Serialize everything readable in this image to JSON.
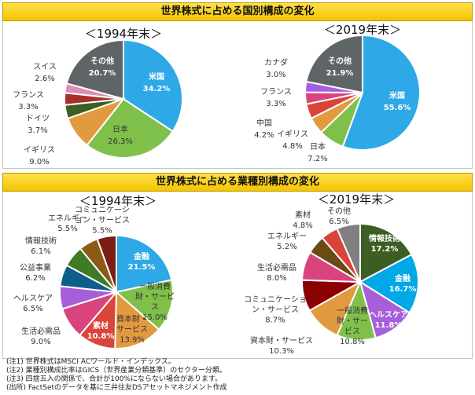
{
  "sections": [
    {
      "title": "世界株式に占める国別構成の変化"
    },
    {
      "title": "世界株式に占める業種別構成の変化"
    }
  ],
  "chart_data": [
    {
      "type": "pie",
      "title": "＜1994年末＞",
      "slices": [
        {
          "label": "米国",
          "value": 34.2,
          "pct": "34.2%",
          "color": "#2ea8e6"
        },
        {
          "label": "日本",
          "value": 26.3,
          "pct": "26.3%",
          "color": "#7fc04a"
        },
        {
          "label": "イギリス",
          "value": 9.0,
          "pct": "9.0%",
          "color": "#e29a3f"
        },
        {
          "label": "ドイツ",
          "value": 3.7,
          "pct": "3.7%",
          "color": "#3c5f23"
        },
        {
          "label": "フランス",
          "value": 3.3,
          "pct": "3.3%",
          "color": "#a8302a"
        },
        {
          "label": "スイス",
          "value": 2.6,
          "pct": "2.6%",
          "color": "#e08bb8"
        },
        {
          "label": "その他",
          "value": 20.7,
          "pct": "20.7%",
          "color": "#5f6566"
        }
      ]
    },
    {
      "type": "pie",
      "title": "＜2019年末＞",
      "slices": [
        {
          "label": "米国",
          "value": 55.6,
          "pct": "55.6%",
          "color": "#2ea8e6"
        },
        {
          "label": "日本",
          "value": 7.2,
          "pct": "7.2%",
          "color": "#7fc04a"
        },
        {
          "label": "イギリス",
          "value": 4.8,
          "pct": "4.8%",
          "color": "#e29a3f"
        },
        {
          "label": "中国",
          "value": 4.2,
          "pct": "4.2%",
          "color": "#d9453a"
        },
        {
          "label": "フランス",
          "value": 3.3,
          "pct": "3.3%",
          "color": "#d9447e"
        },
        {
          "label": "カナダ",
          "value": 3.0,
          "pct": "3.0%",
          "color": "#a35fe0"
        },
        {
          "label": "その他",
          "value": 21.9,
          "pct": "21.9%",
          "color": "#5f6566"
        }
      ]
    },
    {
      "type": "pie",
      "title": "＜1994年末＞",
      "slices": [
        {
          "label": "金融",
          "value": 21.5,
          "pct": "21.5%",
          "color": "#2ea8e6"
        },
        {
          "label": "一般消費財・サービス",
          "value": 15.0,
          "pct": "15.0%",
          "color": "#7fc04a"
        },
        {
          "label": "資本財・サービス",
          "value": 13.9,
          "pct": "13.9%",
          "color": "#e29a3f"
        },
        {
          "label": "素材",
          "value": 10.8,
          "pct": "10.8%",
          "color": "#d9453a"
        },
        {
          "label": "生活必需品",
          "value": 9.0,
          "pct": "9.0%",
          "color": "#d9447e"
        },
        {
          "label": "ヘルスケア",
          "value": 6.5,
          "pct": "6.5%",
          "color": "#a65fd9"
        },
        {
          "label": "公益事業",
          "value": 6.2,
          "pct": "6.2%",
          "color": "#0e5e8a"
        },
        {
          "label": "情報技術",
          "value": 6.1,
          "pct": "6.1%",
          "color": "#3f7a25"
        },
        {
          "label": "エネルギー",
          "value": 5.5,
          "pct": "5.5%",
          "color": "#8a5a16"
        },
        {
          "label": "コミュニケーション・サービス",
          "value": 5.5,
          "pct": "5.5%",
          "color": "#7a1e16"
        }
      ]
    },
    {
      "type": "pie",
      "title": "＜2019年末＞",
      "slices": [
        {
          "label": "情報技術",
          "value": 17.2,
          "pct": "17.2%",
          "color": "#3d5e23"
        },
        {
          "label": "金融",
          "value": 16.7,
          "pct": "16.7%",
          "color": "#00a8e6"
        },
        {
          "label": "ヘルスケア",
          "value": 11.8,
          "pct": "11.8%",
          "color": "#a65fd9"
        },
        {
          "label": "一般消費財・サービス",
          "value": 10.8,
          "pct": "10.8%",
          "color": "#7fc04a"
        },
        {
          "label": "資本財・サービス",
          "value": 10.3,
          "pct": "10.3%",
          "color": "#e29a3f"
        },
        {
          "label": "コミュニケーション・サービス",
          "value": 8.7,
          "pct": "8.7%",
          "color": "#8b0000"
        },
        {
          "label": "生活必需品",
          "value": 8.0,
          "pct": "8.0%",
          "color": "#d9447e"
        },
        {
          "label": "エネルギー",
          "value": 5.2,
          "pct": "5.2%",
          "color": "#6b4a14"
        },
        {
          "label": "素材",
          "value": 4.8,
          "pct": "4.8%",
          "color": "#d9453a"
        },
        {
          "label": "その他",
          "value": 6.5,
          "pct": "6.5%",
          "color": "#808080"
        }
      ]
    }
  ],
  "notes": [
    "(注1) 世界株式はMSCI ACワールド・インデックス。",
    "(注2) 業種別構成比率はGICS（世界産業分類基準）のセクター分類。",
    "(注3) 四捨五入の関係で、合計が100%にならない場合があります。",
    "(出所) FactSetのデータを基に三井住友DSアセットマネジメント作成"
  ]
}
